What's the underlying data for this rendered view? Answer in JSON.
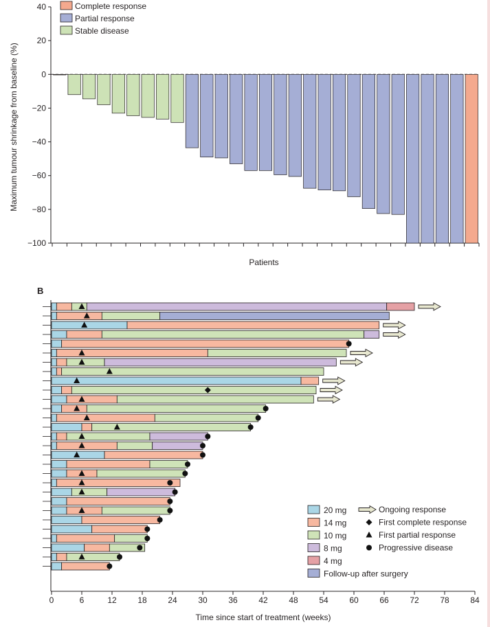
{
  "colors": {
    "complete": "#f4a98e",
    "partial": "#a5aed5",
    "stable": "#cde2b6",
    "dose_20": "#aad6e6",
    "dose_14": "#f7b8a0",
    "dose_10": "#cfe3b8",
    "dose_8": "#cdbbdc",
    "dose_4": "#e5a1a5",
    "followup": "#a5aed5",
    "edge": "#231f20"
  },
  "chart_data": [
    {
      "type": "bar",
      "panel": "A",
      "title": "",
      "xlabel": "Patients",
      "ylabel": "Maximum tumour shrinkage from baseline (%)",
      "ylim": [
        -100,
        40
      ],
      "yticks": [
        "40",
        "20",
        "0",
        "−20",
        "−40",
        "−60",
        "−80",
        "−100"
      ],
      "ytick_values": [
        40,
        20,
        0,
        -20,
        -40,
        -60,
        -80,
        -100
      ],
      "legend": [
        {
          "label": "Complete response",
          "key": "complete"
        },
        {
          "label": "Partial response",
          "key": "partial"
        },
        {
          "label": "Stable disease",
          "key": "stable"
        }
      ],
      "bars": [
        {
          "value": -0.3,
          "response": "stable"
        },
        {
          "value": -12,
          "response": "stable"
        },
        {
          "value": -14.5,
          "response": "stable"
        },
        {
          "value": -18,
          "response": "stable"
        },
        {
          "value": -23,
          "response": "stable"
        },
        {
          "value": -24.5,
          "response": "stable"
        },
        {
          "value": -25.5,
          "response": "stable"
        },
        {
          "value": -26.5,
          "response": "stable"
        },
        {
          "value": -28.5,
          "response": "stable"
        },
        {
          "value": -43.5,
          "response": "partial"
        },
        {
          "value": -49,
          "response": "partial"
        },
        {
          "value": -49.5,
          "response": "partial"
        },
        {
          "value": -53,
          "response": "partial"
        },
        {
          "value": -57,
          "response": "partial"
        },
        {
          "value": -57,
          "response": "partial"
        },
        {
          "value": -59.5,
          "response": "partial"
        },
        {
          "value": -60.5,
          "response": "partial"
        },
        {
          "value": -67.5,
          "response": "partial"
        },
        {
          "value": -68.5,
          "response": "partial"
        },
        {
          "value": -69,
          "response": "partial"
        },
        {
          "value": -72.5,
          "response": "partial"
        },
        {
          "value": -79.5,
          "response": "partial"
        },
        {
          "value": -82.5,
          "response": "partial"
        },
        {
          "value": -83,
          "response": "partial"
        },
        {
          "value": -100,
          "response": "partial"
        },
        {
          "value": -100,
          "response": "partial"
        },
        {
          "value": -100,
          "response": "partial"
        },
        {
          "value": -100,
          "response": "partial"
        },
        {
          "value": -100,
          "response": "complete"
        }
      ]
    },
    {
      "type": "swimmer",
      "panel": "B",
      "panel_label": "B",
      "xlabel": "Time since start of treatment (weeks)",
      "xlim": [
        0,
        84
      ],
      "xticks": [
        0,
        6,
        12,
        18,
        24,
        30,
        36,
        42,
        48,
        54,
        60,
        66,
        72,
        78,
        84
      ],
      "legend": [
        {
          "label": "20 mg",
          "key": "dose_20"
        },
        {
          "label": "14 mg",
          "key": "dose_14"
        },
        {
          "label": "10 mg",
          "key": "dose_10"
        },
        {
          "label": "8 mg",
          "key": "dose_8"
        },
        {
          "label": "4 mg",
          "key": "dose_4"
        },
        {
          "label": "Follow-up after surgery",
          "key": "followup"
        }
      ],
      "marker_legend": [
        {
          "label": "Ongoing response",
          "marker": "arrow"
        },
        {
          "label": "First complete response",
          "marker": "diamond"
        },
        {
          "label": "First partial response",
          "marker": "triangle"
        },
        {
          "label": "Progressive disease",
          "marker": "circle"
        }
      ],
      "patients": [
        {
          "segments": [
            [
              0,
              1,
              "dose_20"
            ],
            [
              1,
              4,
              "dose_14"
            ],
            [
              4,
              7,
              "dose_10"
            ],
            [
              7,
              66.5,
              "dose_8"
            ],
            [
              66.5,
              72,
              "dose_4"
            ]
          ],
          "markers": [
            [
              6,
              "triangle"
            ]
          ],
          "ongoing": true
        },
        {
          "segments": [
            [
              0,
              1,
              "dose_20"
            ],
            [
              1,
              10,
              "dose_14"
            ],
            [
              10,
              21.5,
              "dose_10"
            ],
            [
              21.5,
              67,
              "followup"
            ]
          ],
          "markers": [
            [
              7,
              "triangle"
            ]
          ],
          "ongoing": false
        },
        {
          "segments": [
            [
              0,
              15,
              "dose_20"
            ],
            [
              15,
              65,
              "dose_14"
            ]
          ],
          "markers": [
            [
              6.5,
              "triangle"
            ]
          ],
          "ongoing": true
        },
        {
          "segments": [
            [
              0,
              3,
              "dose_20"
            ],
            [
              3,
              10,
              "dose_14"
            ],
            [
              10,
              62,
              "dose_10"
            ],
            [
              62,
              65,
              "dose_8"
            ]
          ],
          "markers": [],
          "ongoing": true
        },
        {
          "segments": [
            [
              0,
              2,
              "dose_20"
            ],
            [
              2,
              59,
              "dose_14"
            ]
          ],
          "markers": [
            [
              59,
              "circle"
            ]
          ],
          "ongoing": false
        },
        {
          "segments": [
            [
              0,
              1,
              "dose_20"
            ],
            [
              1,
              31,
              "dose_14"
            ],
            [
              31,
              58.5,
              "dose_10"
            ]
          ],
          "markers": [
            [
              6,
              "triangle"
            ]
          ],
          "ongoing": true
        },
        {
          "segments": [
            [
              0,
              1,
              "dose_20"
            ],
            [
              1,
              3,
              "dose_14"
            ],
            [
              3,
              10.5,
              "dose_10"
            ],
            [
              10.5,
              56.5,
              "dose_8"
            ]
          ],
          "markers": [
            [
              6,
              "triangle"
            ]
          ],
          "ongoing": true
        },
        {
          "segments": [
            [
              0,
              1,
              "dose_20"
            ],
            [
              1,
              2,
              "dose_14"
            ],
            [
              2,
              54,
              "dose_10"
            ]
          ],
          "markers": [
            [
              11.5,
              "triangle"
            ]
          ],
          "ongoing": false
        },
        {
          "segments": [
            [
              0,
              49.5,
              "dose_20"
            ],
            [
              49.5,
              53,
              "dose_14"
            ]
          ],
          "markers": [
            [
              5,
              "triangle"
            ]
          ],
          "ongoing": true
        },
        {
          "segments": [
            [
              0,
              2,
              "dose_20"
            ],
            [
              2,
              4,
              "dose_14"
            ],
            [
              4,
              52.5,
              "dose_10"
            ]
          ],
          "markers": [
            [
              31,
              "diamond"
            ]
          ],
          "ongoing": true
        },
        {
          "segments": [
            [
              0,
              3,
              "dose_20"
            ],
            [
              3,
              13,
              "dose_14"
            ],
            [
              13,
              52,
              "dose_10"
            ]
          ],
          "markers": [
            [
              6,
              "triangle"
            ]
          ],
          "ongoing": true
        },
        {
          "segments": [
            [
              0,
              2,
              "dose_20"
            ],
            [
              2,
              7,
              "dose_14"
            ],
            [
              7,
              42.5,
              "dose_10"
            ]
          ],
          "markers": [
            [
              5,
              "triangle"
            ],
            [
              42.5,
              "circle"
            ]
          ],
          "ongoing": false
        },
        {
          "segments": [
            [
              0,
              1,
              "dose_20"
            ],
            [
              1,
              20.5,
              "dose_14"
            ],
            [
              20.5,
              41,
              "dose_10"
            ]
          ],
          "markers": [
            [
              7,
              "triangle"
            ],
            [
              41,
              "circle"
            ]
          ],
          "ongoing": false
        },
        {
          "segments": [
            [
              0,
              6,
              "dose_20"
            ],
            [
              6,
              8,
              "dose_14"
            ],
            [
              8,
              39.5,
              "dose_10"
            ]
          ],
          "markers": [
            [
              13,
              "triangle"
            ],
            [
              39.5,
              "circle"
            ]
          ],
          "ongoing": false
        },
        {
          "segments": [
            [
              0,
              1,
              "dose_20"
            ],
            [
              1,
              3,
              "dose_14"
            ],
            [
              3,
              19.5,
              "dose_10"
            ],
            [
              19.5,
              31,
              "dose_8"
            ]
          ],
          "markers": [
            [
              6,
              "triangle"
            ],
            [
              31,
              "circle"
            ]
          ],
          "ongoing": false
        },
        {
          "segments": [
            [
              0,
              1,
              "dose_20"
            ],
            [
              1,
              13,
              "dose_14"
            ],
            [
              13,
              20,
              "dose_10"
            ],
            [
              20,
              30,
              "dose_8"
            ]
          ],
          "markers": [
            [
              6,
              "triangle"
            ],
            [
              30,
              "circle"
            ]
          ],
          "ongoing": false
        },
        {
          "segments": [
            [
              0,
              10.5,
              "dose_20"
            ],
            [
              10.5,
              30,
              "dose_14"
            ]
          ],
          "markers": [
            [
              5,
              "triangle"
            ],
            [
              30,
              "circle"
            ]
          ],
          "ongoing": false
        },
        {
          "segments": [
            [
              0,
              3,
              "dose_20"
            ],
            [
              3,
              19.5,
              "dose_14"
            ],
            [
              19.5,
              27,
              "dose_10"
            ]
          ],
          "markers": [
            [
              27,
              "circle"
            ]
          ],
          "ongoing": false
        },
        {
          "segments": [
            [
              0,
              3,
              "dose_20"
            ],
            [
              3,
              9,
              "dose_14"
            ],
            [
              9,
              26.5,
              "dose_10"
            ]
          ],
          "markers": [
            [
              6,
              "triangle"
            ],
            [
              26.5,
              "circle"
            ]
          ],
          "ongoing": false
        },
        {
          "segments": [
            [
              0,
              1,
              "dose_20"
            ],
            [
              1,
              25.5,
              "dose_14"
            ]
          ],
          "markers": [
            [
              6,
              "triangle"
            ],
            [
              23.5,
              "circle"
            ]
          ],
          "ongoing": false
        },
        {
          "segments": [
            [
              0,
              4,
              "dose_20"
            ],
            [
              4,
              11,
              "dose_10"
            ],
            [
              11,
              24.5,
              "dose_8"
            ]
          ],
          "markers": [
            [
              6,
              "triangle"
            ],
            [
              24.5,
              "circle"
            ]
          ],
          "ongoing": false
        },
        {
          "segments": [
            [
              0,
              3,
              "dose_20"
            ],
            [
              3,
              23.5,
              "dose_14"
            ]
          ],
          "markers": [
            [
              23.5,
              "circle"
            ]
          ],
          "ongoing": false
        },
        {
          "segments": [
            [
              0,
              3,
              "dose_20"
            ],
            [
              3,
              10,
              "dose_14"
            ],
            [
              10,
              23.5,
              "dose_10"
            ]
          ],
          "markers": [
            [
              6,
              "triangle"
            ],
            [
              23.5,
              "circle"
            ]
          ],
          "ongoing": false
        },
        {
          "segments": [
            [
              0,
              6,
              "dose_20"
            ],
            [
              6,
              21.5,
              "dose_14"
            ]
          ],
          "markers": [
            [
              21.5,
              "circle"
            ]
          ],
          "ongoing": false
        },
        {
          "segments": [
            [
              0,
              8,
              "dose_20"
            ],
            [
              8,
              19,
              "dose_14"
            ]
          ],
          "markers": [
            [
              19,
              "circle"
            ]
          ],
          "ongoing": false
        },
        {
          "segments": [
            [
              0,
              1,
              "dose_20"
            ],
            [
              1,
              12.5,
              "dose_14"
            ],
            [
              12.5,
              19,
              "dose_10"
            ]
          ],
          "markers": [
            [
              19,
              "circle"
            ]
          ],
          "ongoing": false
        },
        {
          "segments": [
            [
              0,
              6.5,
              "dose_20"
            ],
            [
              6.5,
              11.5,
              "dose_14"
            ],
            [
              11.5,
              18.5,
              "dose_10"
            ]
          ],
          "markers": [
            [
              17.5,
              "circle"
            ]
          ],
          "ongoing": false
        },
        {
          "segments": [
            [
              0,
              1,
              "dose_20"
            ],
            [
              1,
              3,
              "dose_14"
            ],
            [
              3,
              13.5,
              "dose_10"
            ]
          ],
          "markers": [
            [
              6,
              "triangle"
            ],
            [
              13.5,
              "circle"
            ]
          ],
          "ongoing": false
        },
        {
          "segments": [
            [
              0,
              2,
              "dose_20"
            ],
            [
              2,
              11.5,
              "dose_14"
            ]
          ],
          "markers": [
            [
              11.5,
              "circle"
            ]
          ],
          "ongoing": false
        }
      ]
    }
  ]
}
